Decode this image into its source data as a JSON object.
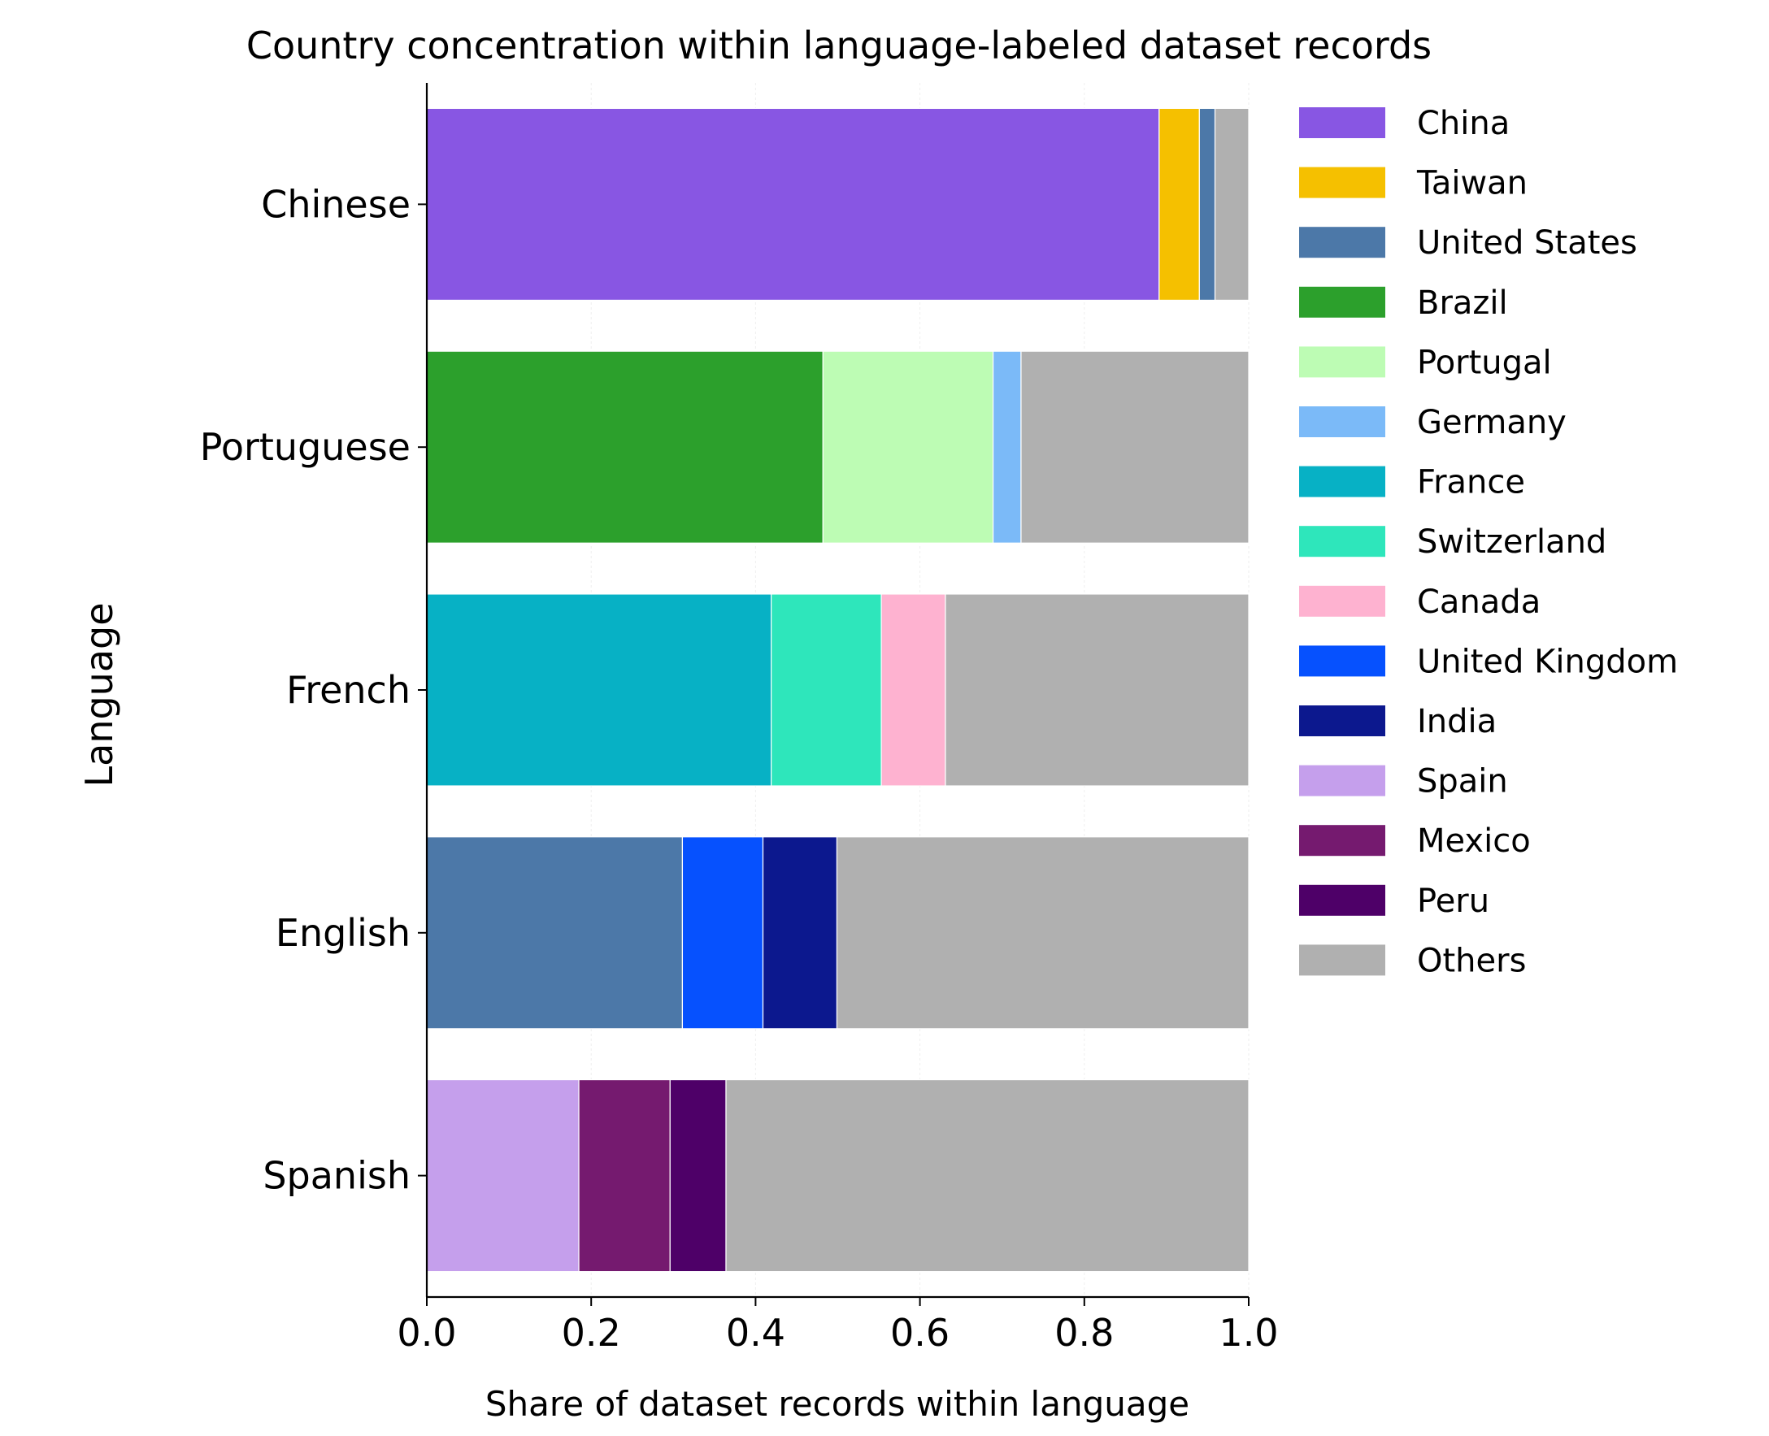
{
  "chart_data": {
    "type": "bar",
    "orientation": "horizontal",
    "stacked": true,
    "title": "Country concentration within language-labeled dataset records",
    "xlabel": "Share of dataset records within language",
    "ylabel": "Language",
    "xlim": [
      0,
      1
    ],
    "xticks": [
      "0.0",
      "0.2",
      "0.4",
      "0.6",
      "0.8",
      "1.0"
    ],
    "grid": "vertical, faint",
    "legend_position": "right",
    "categories": [
      "Chinese",
      "Portuguese",
      "French",
      "English",
      "Spanish"
    ],
    "series": [
      {
        "name": "China",
        "color": "#8856e3",
        "values": [
          0.891,
          0,
          0,
          0,
          0
        ]
      },
      {
        "name": "Taiwan",
        "color": "#f5c000",
        "values": [
          0.049,
          0,
          0,
          0,
          0
        ]
      },
      {
        "name": "United States",
        "color": "#4c78a8",
        "values": [
          0.019,
          0,
          0,
          0.311,
          0
        ]
      },
      {
        "name": "Brazil",
        "color": "#2ca02c",
        "values": [
          0,
          0.482,
          0,
          0,
          0
        ]
      },
      {
        "name": "Portugal",
        "color": "#bdfcb4",
        "values": [
          0,
          0.207,
          0,
          0,
          0
        ]
      },
      {
        "name": "Germany",
        "color": "#7bbaf8",
        "values": [
          0,
          0.034,
          0,
          0,
          0
        ]
      },
      {
        "name": "France",
        "color": "#07b1c5",
        "values": [
          0,
          0,
          0.419,
          0,
          0
        ]
      },
      {
        "name": "Switzerland",
        "color": "#2ee6bb",
        "values": [
          0,
          0,
          0.134,
          0,
          0
        ]
      },
      {
        "name": "Canada",
        "color": "#feb2d0",
        "values": [
          0,
          0,
          0.078,
          0,
          0
        ]
      },
      {
        "name": "United Kingdom",
        "color": "#0651fe",
        "values": [
          0,
          0,
          0,
          0.098,
          0
        ]
      },
      {
        "name": "India",
        "color": "#0c188e",
        "values": [
          0,
          0,
          0,
          0.09,
          0
        ]
      },
      {
        "name": "Spain",
        "color": "#c59fec",
        "values": [
          0,
          0,
          0,
          0,
          0.185
        ]
      },
      {
        "name": "Mexico",
        "color": "#751a6f",
        "values": [
          0,
          0,
          0,
          0,
          0.111
        ]
      },
      {
        "name": "Peru",
        "color": "#4e0068",
        "values": [
          0,
          0,
          0,
          0,
          0.068
        ]
      },
      {
        "name": "Others",
        "color": "#b0b0b0",
        "values": [
          0.041,
          0.277,
          0.369,
          0.501,
          0.636
        ]
      }
    ]
  }
}
